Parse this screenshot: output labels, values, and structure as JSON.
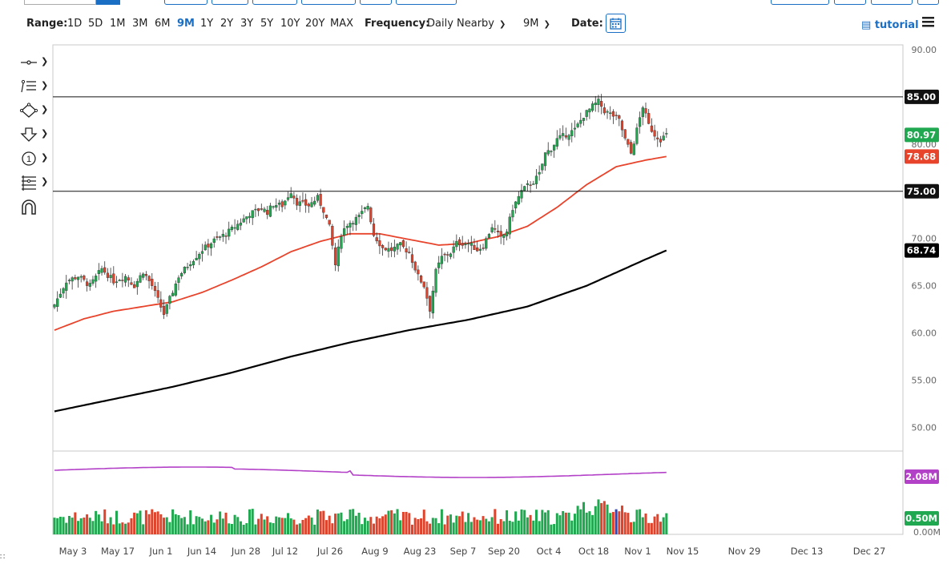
{
  "toolbar": {
    "range_label": "Range:",
    "ranges": [
      "1D",
      "5D",
      "1M",
      "3M",
      "6M",
      "9M",
      "1Y",
      "2Y",
      "3Y",
      "5Y",
      "10Y",
      "20Y",
      "MAX"
    ],
    "active_range": "9M",
    "frequency_label": "Frequency:",
    "frequency_value": "Daily Nearby",
    "period_value": "9M",
    "date_label": "Date:",
    "tutorial_label": "tutorial"
  },
  "colors": {
    "up": "#1fa84f",
    "down": "#e0432b",
    "ma50": "#e8432b",
    "ma200": "#000000",
    "volume_avg": "#b341c8",
    "accent": "#1a6fc4"
  },
  "icons": [
    "horizontal-line-icon",
    "list-lines-icon",
    "shape-icon",
    "arrow-down-icon",
    "circled-number-icon",
    "fib-tool-icon",
    "magnet-icon"
  ],
  "chart_data": {
    "type": "candlestick",
    "price_axis": {
      "ticks": [
        "90.00",
        "85.00",
        "80.00",
        "75.00",
        "70.00",
        "65.00",
        "60.00",
        "55.00",
        "50.00"
      ],
      "ylim": [
        47.5,
        90.5
      ]
    },
    "volume_axis": {
      "ticks": [
        "0.00M"
      ]
    },
    "x_ticks": [
      "May 3",
      "May 17",
      "Jun 1",
      "Jun 14",
      "Jun 28",
      "Jul 12",
      "Jul 26",
      "Aug 9",
      "Aug 23",
      "Sep 7",
      "Sep 20",
      "Oct 4",
      "Oct 18",
      "Nov 1",
      "Nov 15",
      "Nov 29",
      "Dec 13",
      "Dec 27"
    ],
    "horizontal_lines": [
      {
        "label": "85.00",
        "value": 85.0
      },
      {
        "label": "75.00",
        "value": 75.0
      }
    ],
    "price_labels": [
      {
        "label": "80.97",
        "value": 80.97,
        "color": "#1fa84f"
      },
      {
        "label": "78.68",
        "value": 78.68,
        "color": "#e8432b"
      },
      {
        "label": "68.74",
        "value": 68.74,
        "color": "#000000"
      }
    ],
    "volume_labels": [
      {
        "label": "2.08M",
        "color": "#b341c8"
      },
      {
        "label": "0.50M",
        "color": "#1fa84f"
      }
    ],
    "close_path": [
      [
        0,
        63.0
      ],
      [
        4,
        65.5
      ],
      [
        8,
        66.0
      ],
      [
        12,
        65.0
      ],
      [
        16,
        66.8
      ],
      [
        20,
        65.5
      ],
      [
        24,
        66.0
      ],
      [
        27,
        65.0
      ],
      [
        30,
        66.5
      ],
      [
        33,
        65.0
      ],
      [
        37,
        62.0
      ],
      [
        42,
        66.0
      ],
      [
        46,
        67.5
      ],
      [
        50,
        68.8
      ],
      [
        54,
        69.8
      ],
      [
        58,
        70.5
      ],
      [
        62,
        71.5
      ],
      [
        66,
        72.6
      ],
      [
        70,
        73.2
      ],
      [
        72,
        72.8
      ],
      [
        74,
        73.6
      ],
      [
        77,
        73.5
      ],
      [
        80,
        75.0
      ],
      [
        82,
        73.8
      ],
      [
        86,
        73.5
      ],
      [
        89,
        74.3
      ],
      [
        91,
        73.0
      ],
      [
        93,
        71.2
      ],
      [
        95,
        67.2
      ],
      [
        97,
        70.5
      ],
      [
        99,
        71.5
      ],
      [
        103,
        72.3
      ],
      [
        106,
        73.5
      ],
      [
        108,
        70.4
      ],
      [
        111,
        69.0
      ],
      [
        114,
        68.8
      ],
      [
        117,
        69.3
      ],
      [
        120,
        68.5
      ],
      [
        123,
        66.0
      ],
      [
        125,
        65.0
      ],
      [
        127,
        62.5
      ],
      [
        129,
        66.5
      ],
      [
        131,
        68.0
      ],
      [
        134,
        68.5
      ],
      [
        136,
        69.5
      ],
      [
        140,
        69.5
      ],
      [
        143,
        68.8
      ],
      [
        145,
        69.2
      ],
      [
        148,
        71.3
      ],
      [
        151,
        70.0
      ],
      [
        153,
        70.8
      ],
      [
        155,
        73.2
      ],
      [
        158,
        75.0
      ],
      [
        160,
        75.6
      ],
      [
        162,
        76.0
      ],
      [
        164,
        76.8
      ],
      [
        166,
        79.0
      ],
      [
        168,
        79.5
      ],
      [
        170,
        80.5
      ],
      [
        173,
        81.0
      ],
      [
        176,
        81.5
      ],
      [
        179,
        83.0
      ],
      [
        182,
        84.0
      ],
      [
        184,
        84.5
      ],
      [
        186,
        83.5
      ],
      [
        189,
        83.0
      ],
      [
        191,
        82.5
      ],
      [
        193,
        80.5
      ],
      [
        195,
        79.0
      ],
      [
        197,
        81.5
      ],
      [
        199,
        84.0
      ],
      [
        201,
        82.0
      ],
      [
        203,
        81.0
      ],
      [
        205,
        80.5
      ],
      [
        207,
        80.97
      ]
    ],
    "ma50": [
      [
        0,
        60.3
      ],
      [
        10,
        61.5
      ],
      [
        20,
        62.3
      ],
      [
        30,
        62.8
      ],
      [
        40,
        63.3
      ],
      [
        50,
        64.3
      ],
      [
        60,
        65.6
      ],
      [
        70,
        67.0
      ],
      [
        80,
        68.6
      ],
      [
        90,
        69.7
      ],
      [
        100,
        70.5
      ],
      [
        110,
        70.5
      ],
      [
        120,
        69.9
      ],
      [
        130,
        69.3
      ],
      [
        140,
        69.5
      ],
      [
        150,
        70.2
      ],
      [
        160,
        71.3
      ],
      [
        170,
        73.3
      ],
      [
        180,
        75.7
      ],
      [
        190,
        77.6
      ],
      [
        200,
        78.3
      ],
      [
        207,
        78.68
      ]
    ],
    "ma200": [
      [
        0,
        51.7
      ],
      [
        20,
        53.0
      ],
      [
        40,
        54.3
      ],
      [
        60,
        55.8
      ],
      [
        80,
        57.5
      ],
      [
        100,
        59.0
      ],
      [
        120,
        60.3
      ],
      [
        140,
        61.4
      ],
      [
        160,
        62.8
      ],
      [
        180,
        65.0
      ],
      [
        200,
        67.8
      ],
      [
        207,
        68.74
      ]
    ]
  }
}
